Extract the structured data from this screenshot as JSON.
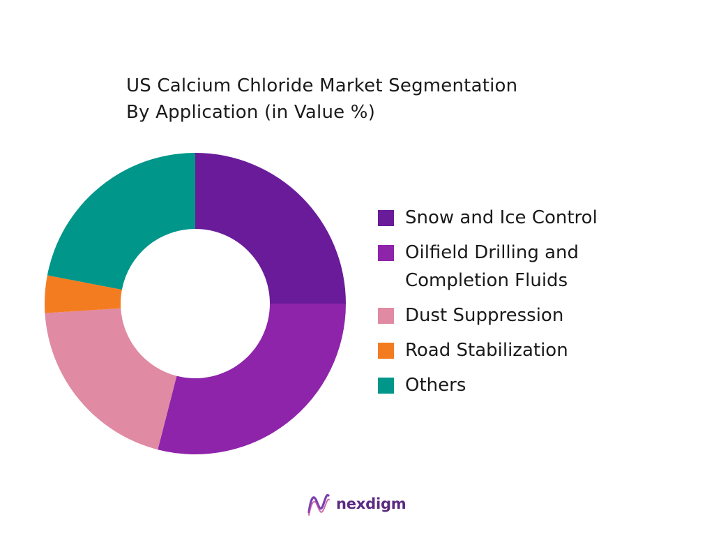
{
  "chart_data": {
    "type": "pie",
    "donut": true,
    "title": "US Calcium Chloride Market Segmentation By Application (in Value %)",
    "title_lines": [
      "US Calcium Chloride Market Segmentation",
      "By Application (in Value %)"
    ],
    "legend_position": "right",
    "categories": [
      "Snow and Ice Control",
      "Oilfield Drilling and Completion Fluids",
      "Dust Suppression",
      "Road Stabilization",
      "Others"
    ],
    "values": [
      25,
      29,
      20,
      4,
      22
    ],
    "colors": [
      "#6a1b9a",
      "#8e24aa",
      "#e08aa3",
      "#f47c20",
      "#00968a"
    ]
  },
  "legend": [
    {
      "label": "Snow and Ice Control",
      "color": "#6a1b9a"
    },
    {
      "label": "Oilfield Drilling and Completion Fluids",
      "color": "#8e24aa"
    },
    {
      "label": "Dust Suppression",
      "color": "#e08aa3"
    },
    {
      "label": "Road Stabilization",
      "color": "#f47c20"
    },
    {
      "label": "Others",
      "color": "#00968a"
    }
  ],
  "brand": {
    "name": "nexdigm",
    "logo_icon": "nexdigm-logo-icon",
    "color": "#5a2a82"
  }
}
